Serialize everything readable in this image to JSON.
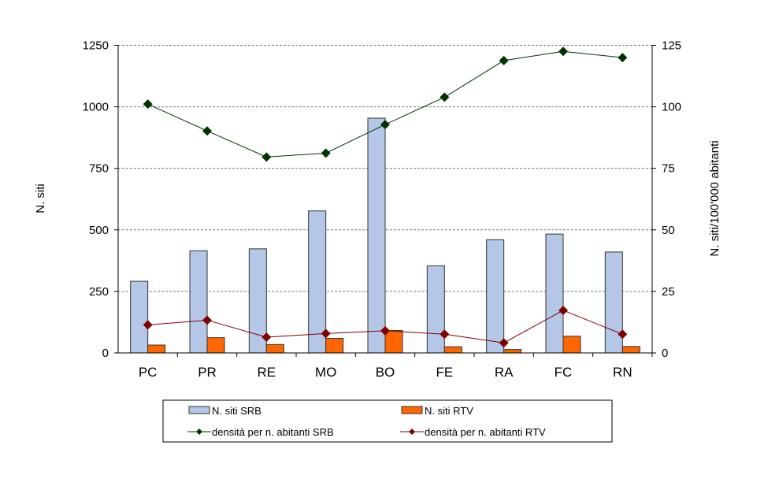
{
  "chart_data": {
    "type": "bar",
    "categories": [
      "PC",
      "PR",
      "RE",
      "MO",
      "BO",
      "FE",
      "RA",
      "FC",
      "RN"
    ],
    "ylabel": "N. siti",
    "y2label": "N. siti/100'000 abitanti",
    "ylim": [
      0,
      1250
    ],
    "y2lim": [
      0,
      125
    ],
    "yticks": [
      "0",
      "250",
      "500",
      "750",
      "1000",
      "1250"
    ],
    "y2ticks": [
      "0",
      "25",
      "50",
      "75",
      "100",
      "125"
    ],
    "grid": true,
    "legend_position": "bottom",
    "series": [
      {
        "name": "N. siti SRB",
        "type": "bar",
        "axis": "left",
        "color": "#b4c7e7",
        "values": [
          291,
          415,
          423,
          577,
          954,
          354,
          460,
          483,
          410
        ]
      },
      {
        "name": "N. siti RTV",
        "type": "bar",
        "axis": "left",
        "color": "#ff6600",
        "values": [
          32,
          62,
          34,
          59,
          91,
          25,
          14,
          68,
          26
        ]
      },
      {
        "name": "densità per n. abitanti SRB",
        "type": "line",
        "axis": "right",
        "color": "#003300",
        "values": [
          101.1,
          90.2,
          79.6,
          81.2,
          92.8,
          103.9,
          118.8,
          122.5,
          120.0
        ]
      },
      {
        "name": "densità per n. abitanti RTV",
        "type": "line",
        "axis": "right",
        "color": "#800000",
        "values": [
          11.4,
          13.3,
          6.4,
          7.9,
          9.0,
          7.6,
          4.1,
          17.3,
          7.6
        ]
      }
    ]
  }
}
